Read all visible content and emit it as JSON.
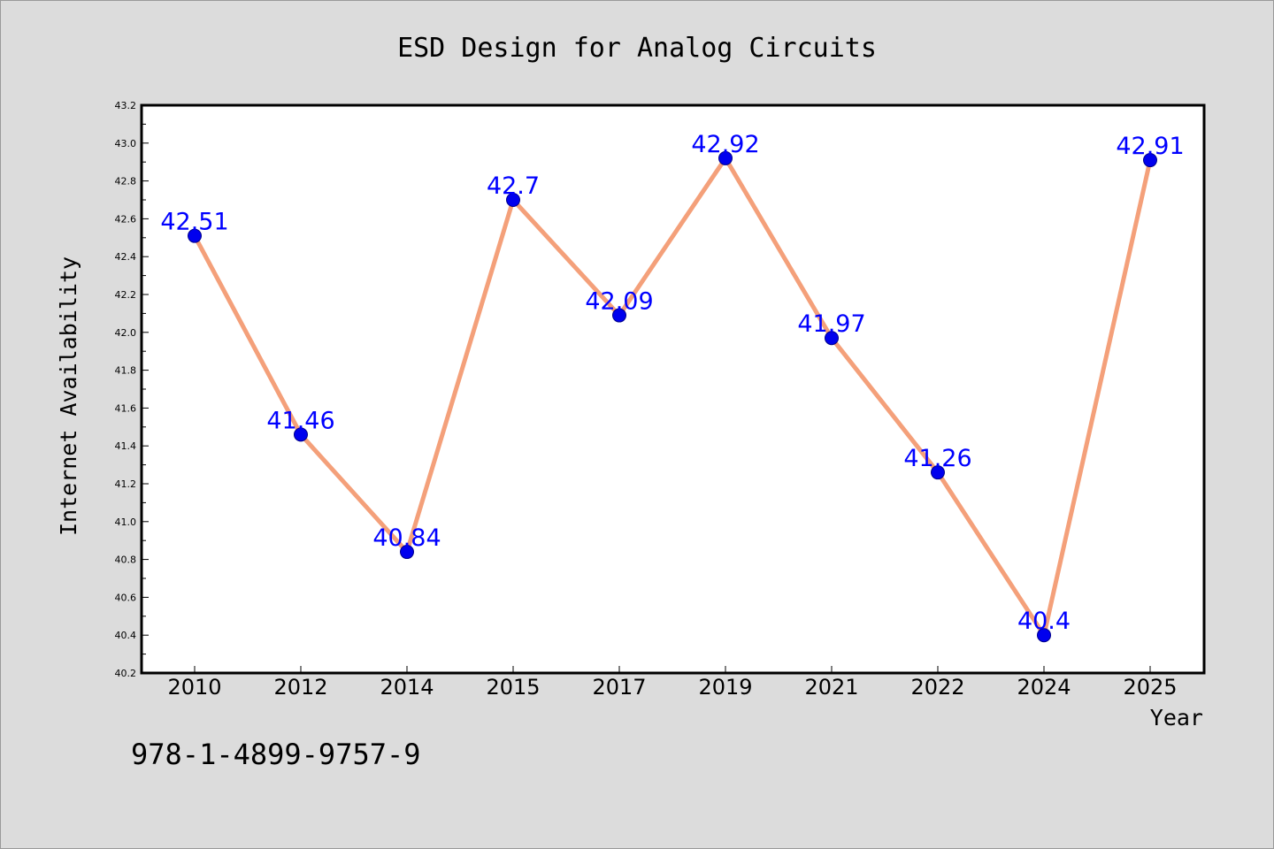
{
  "chart_data": {
    "type": "line",
    "title": "ESD Design for Analog Circuits",
    "xlabel": "Year",
    "ylabel": "Internet Availability",
    "categories": [
      "2010",
      "2012",
      "2014",
      "2015",
      "2017",
      "2019",
      "2021",
      "2022",
      "2024",
      "2025"
    ],
    "series": [
      {
        "values": [
          42.51,
          41.46,
          40.84,
          42.7,
          42.09,
          42.92,
          41.97,
          41.26,
          40.4,
          42.91
        ],
        "data_labels": [
          "42.51",
          "41.46",
          "40.84",
          "42.7",
          "42.09",
          "42.92",
          "41.97",
          "41.26",
          "40.4",
          "42.91"
        ]
      }
    ],
    "ylim": [
      40.2,
      43.2
    ],
    "yticks": [
      "40.2",
      "40.4",
      "40.6",
      "40.8",
      "41.0",
      "41.2",
      "41.4",
      "41.6",
      "41.8",
      "42.0",
      "42.2",
      "42.4",
      "42.6",
      "42.8",
      "43.0",
      "43.2"
    ],
    "grid": false,
    "legend": "none",
    "colors": {
      "line": "#f4a07a",
      "marker": "#0000ee",
      "data_label": "#0000ff",
      "background": "#dcdcdc",
      "plot_background": "#ffffff"
    }
  },
  "footer": {
    "isbn": "978-1-4899-9757-9"
  }
}
